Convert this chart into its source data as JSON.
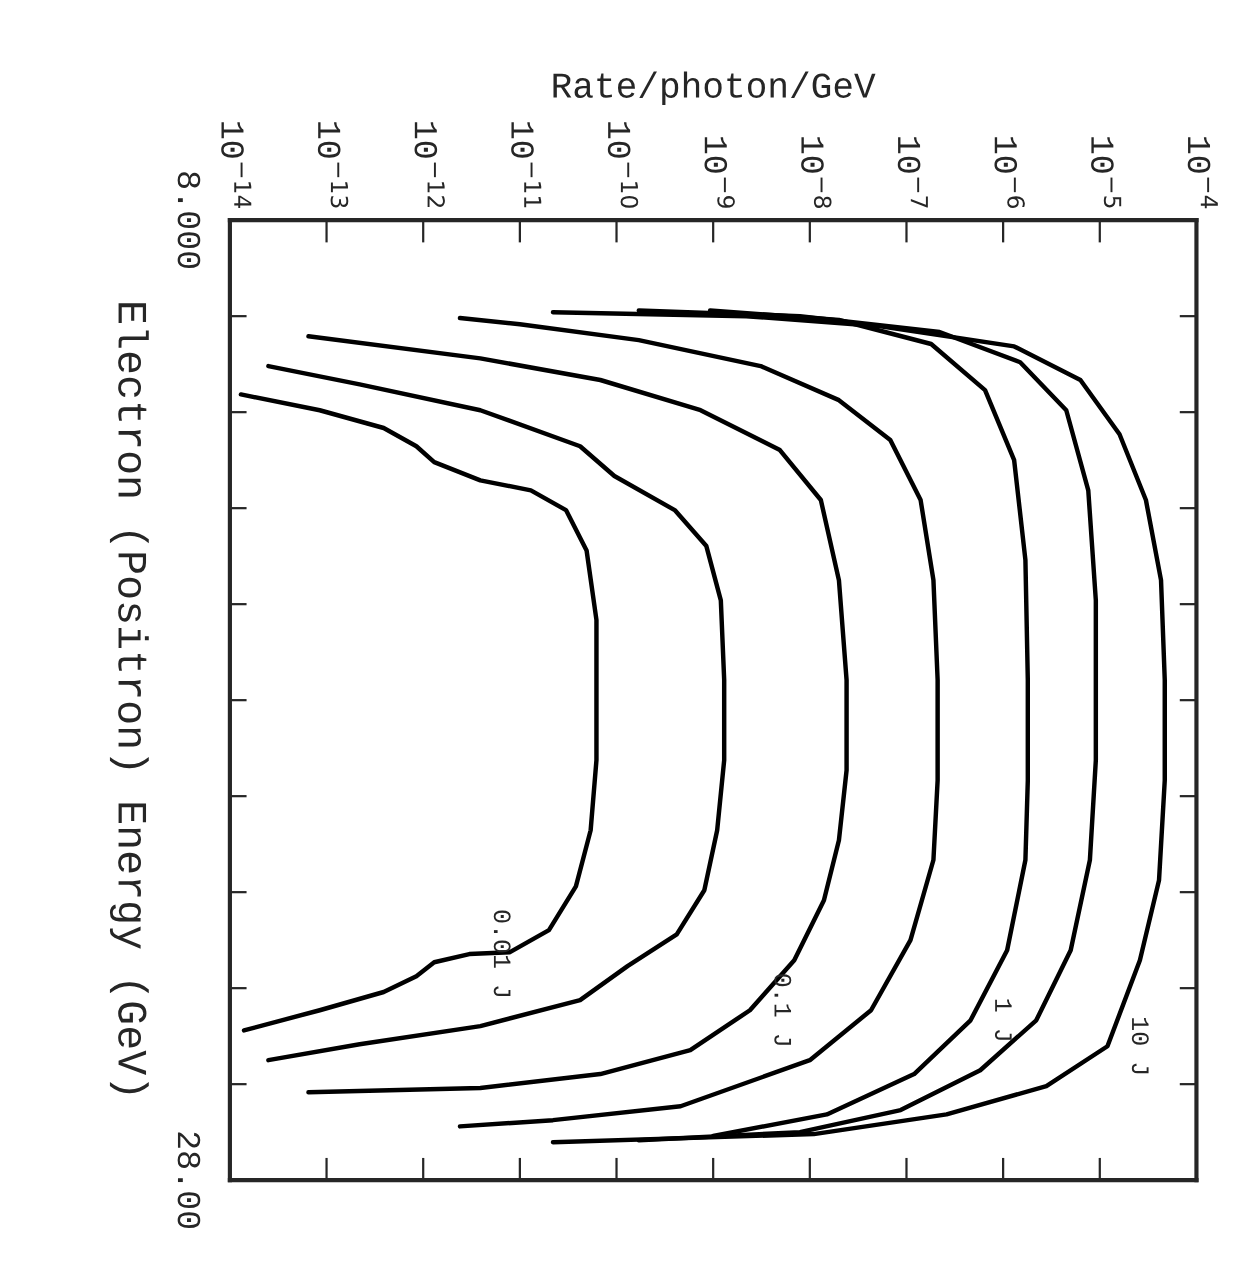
{
  "chart_data": {
    "type": "line",
    "orientation": "horizontal",
    "log": "x",
    "xlabel": "Rate/photon/GeV",
    "ylabel": "Electron (Positron) Energy (GeV)",
    "xlim": [
      1e-14,
      0.0001
    ],
    "xticks": [
      {
        "value": 1e-14,
        "label": "10$^{−14}$"
      },
      {
        "value": 1e-13,
        "label": "10$^{−13}$"
      },
      {
        "value": 1e-12,
        "label": "10$^{−12}$"
      },
      {
        "value": 1e-11,
        "label": "10$^{−11}$"
      },
      {
        "value": 1e-10,
        "label": "10$^{−10}$"
      },
      {
        "value": 1e-09,
        "label": "10$^{−9}$"
      },
      {
        "value": 1e-08,
        "label": "10$^{−8}$"
      },
      {
        "value": 1e-07,
        "label": "10$^{−7}$"
      },
      {
        "value": 1e-06,
        "label": "10$^{−6}$"
      },
      {
        "value": 1e-05,
        "label": "10$^{−5}$"
      },
      {
        "value": 0.0001,
        "label": "10$^{−4}$"
      }
    ],
    "ylim": [
      28,
      8
    ],
    "yticks": [
      {
        "value": 8,
        "label": "8.000"
      },
      {
        "value": 10,
        "label": null
      },
      {
        "value": 12,
        "label": null
      },
      {
        "value": 14,
        "label": null
      },
      {
        "value": 16,
        "label": null
      },
      {
        "value": 18,
        "label": null
      },
      {
        "value": 20,
        "label": null
      },
      {
        "value": 22,
        "label": null
      },
      {
        "value": 24,
        "label": null
      },
      {
        "value": 26,
        "label": null
      },
      {
        "value": 28,
        "label": "28.00"
      }
    ],
    "series": [
      {
        "color": "#000000",
        "x": [
          11.63,
          11.96,
          12.33,
          12.71,
          13.04,
          13.42,
          13.63,
          14.04,
          14.88,
          16.33,
          19.25,
          20.71,
          21.88,
          22.79,
          23.25,
          23.29,
          23.46,
          23.75,
          24.08,
          24.46,
          24.88
        ],
        "values": [
          1.3e-14,
          8.5e-14,
          3.9e-13,
          8.5e-13,
          1.3e-12,
          3.9e-12,
          1.3e-11,
          3e-11,
          4.9e-11,
          6.2e-11,
          6.2e-11,
          5.4e-11,
          3.8e-11,
          2e-11,
          7.9e-12,
          3e-12,
          1.3e-12,
          8.5e-13,
          3.9e-13,
          8.5e-14,
          1.4e-14
        ]
      },
      {
        "color": "#000000",
        "x": [
          11.04,
          11.42,
          11.96,
          12.71,
          13.33,
          14.04,
          14.79,
          15.92,
          17.58,
          19.25,
          20.71,
          21.96,
          22.88,
          23.54,
          24.25,
          24.79,
          25.17,
          25.5
        ],
        "values": [
          2.5e-14,
          2.2e-13,
          3.9e-12,
          4.2e-11,
          9.5e-11,
          4e-10,
          8.5e-10,
          1.2e-09,
          1.3e-09,
          1.3e-09,
          1.1e-09,
          8.1e-10,
          4.2e-10,
          1.3e-10,
          4.2e-11,
          3.9e-12,
          2.2e-13,
          2.5e-14
        ]
      },
      {
        "color": "#000000",
        "x": [
          10.42,
          10.88,
          11.33,
          11.96,
          12.79,
          13.83,
          15.5,
          17.58,
          19.46,
          20.92,
          22.17,
          23.42,
          24.46,
          25.29,
          25.79,
          26.08,
          26.17
        ],
        "values": [
          6.5e-14,
          3.9e-12,
          6.8e-11,
          7.4e-10,
          4.9e-09,
          1.3e-08,
          2e-08,
          2.4e-08,
          2.4e-08,
          2e-08,
          1.4e-08,
          6.9e-09,
          2.4e-09,
          5.8e-10,
          6.8e-11,
          3.9e-12,
          6.5e-14
        ]
      },
      {
        "color": "#000000",
        "x": [
          10.04,
          10.17,
          10.5,
          11.04,
          11.75,
          12.58,
          13.83,
          15.5,
          17.58,
          19.67,
          21.33,
          23.0,
          24.46,
          25.5,
          26.46,
          26.75,
          26.88
        ],
        "values": [
          2.4e-12,
          1e-11,
          1.7e-10,
          3.1e-09,
          2e-08,
          6.8e-08,
          1.4e-07,
          1.9e-07,
          2.1e-07,
          2.1e-07,
          1.9e-07,
          1.1e-07,
          4.3e-08,
          1e-08,
          4.6e-10,
          2.2e-11,
          2.4e-12
        ]
      },
      {
        "color": "#000000",
        "x": [
          9.88,
          10.08,
          10.58,
          11.54,
          13.0,
          15.08,
          17.58,
          19.67,
          21.33,
          23.21,
          24.67,
          25.79,
          26.63,
          27.08
        ],
        "values": [
          9.3e-10,
          2e-08,
          1.8e-07,
          6.5e-07,
          1.3e-06,
          1.7e-06,
          1.8e-06,
          1.8e-06,
          1.7e-06,
          1.1e-06,
          4.6e-07,
          1.2e-07,
          1.5e-08,
          1e-09
        ]
      },
      {
        "color": "#000000",
        "x": [
          9.88,
          10.0,
          10.33,
          10.96,
          11.96,
          13.63,
          15.92,
          19.25,
          21.33,
          23.21,
          24.67,
          25.71,
          26.54,
          27.0,
          27.17
        ],
        "values": [
          1.7e-10,
          7.9e-09,
          2.2e-07,
          1.5e-06,
          4.5e-06,
          7.6e-06,
          9.1e-06,
          9.1e-06,
          7.9e-06,
          5e-06,
          2.2e-06,
          5.8e-07,
          8.7e-08,
          7.9e-09,
          1.7e-10
        ]
      },
      {
        "color": "#000000",
        "x": [
          9.92,
          10.0,
          10.21,
          10.63,
          11.33,
          12.46,
          13.83,
          15.5,
          17.58,
          19.67,
          21.75,
          23.42,
          25.21,
          26.04,
          26.63,
          27.04,
          27.21
        ],
        "values": [
          2.2e-11,
          2.2e-09,
          5.4e-08,
          1.3e-06,
          6.3e-06,
          1.6e-05,
          3e-05,
          4.3e-05,
          4.7e-05,
          4.7e-05,
          4.1e-05,
          2.6e-05,
          1.2e-05,
          2.8e-06,
          2.6e-07,
          1.1e-08,
          2.2e-11
        ]
      }
    ],
    "annotations": [
      "0.01 J",
      "0.1 J",
      "1 J",
      "10 J"
    ]
  }
}
